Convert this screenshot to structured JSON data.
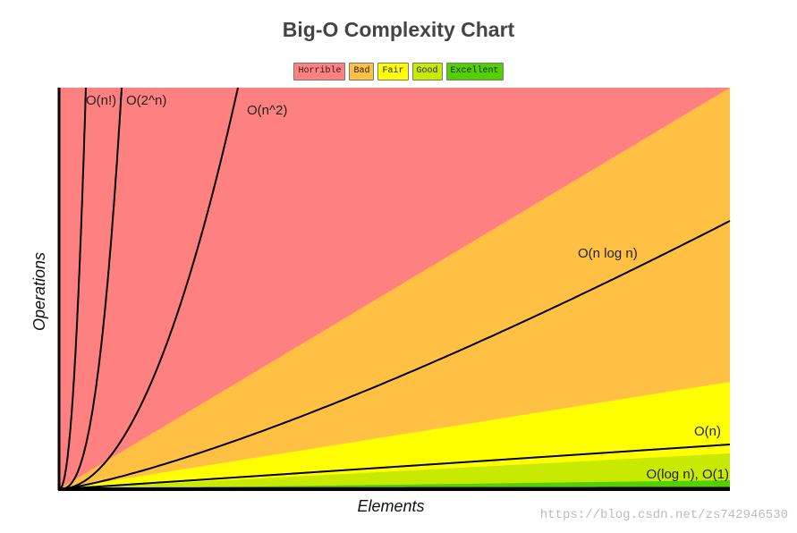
{
  "chart_data": {
    "type": "area",
    "title": "Big-O Complexity Chart",
    "xlabel": "Elements",
    "ylabel": "Operations",
    "grid": false,
    "legend_position": "top-center",
    "legend": [
      {
        "label": "Horrible",
        "color": "#ff8080"
      },
      {
        "label": "Bad",
        "color": "#ffc043"
      },
      {
        "label": "Fair",
        "color": "#ffff00"
      },
      {
        "label": "Good",
        "color": "#c8ea00"
      },
      {
        "label": "Excellent",
        "color": "#53d000"
      }
    ],
    "series": [
      {
        "name": "O(n!)",
        "function": "factorial"
      },
      {
        "name": "O(2^n)",
        "function": "exponential"
      },
      {
        "name": "O(n^2)",
        "function": "quadratic"
      },
      {
        "name": "O(n log n)",
        "function": "linearithmic"
      },
      {
        "name": "O(n)",
        "function": "linear"
      },
      {
        "name": "O(log n), O(1)",
        "function": "logarithmic-constant"
      }
    ]
  },
  "watermark": "https://blog.csdn.net/zs742946530"
}
